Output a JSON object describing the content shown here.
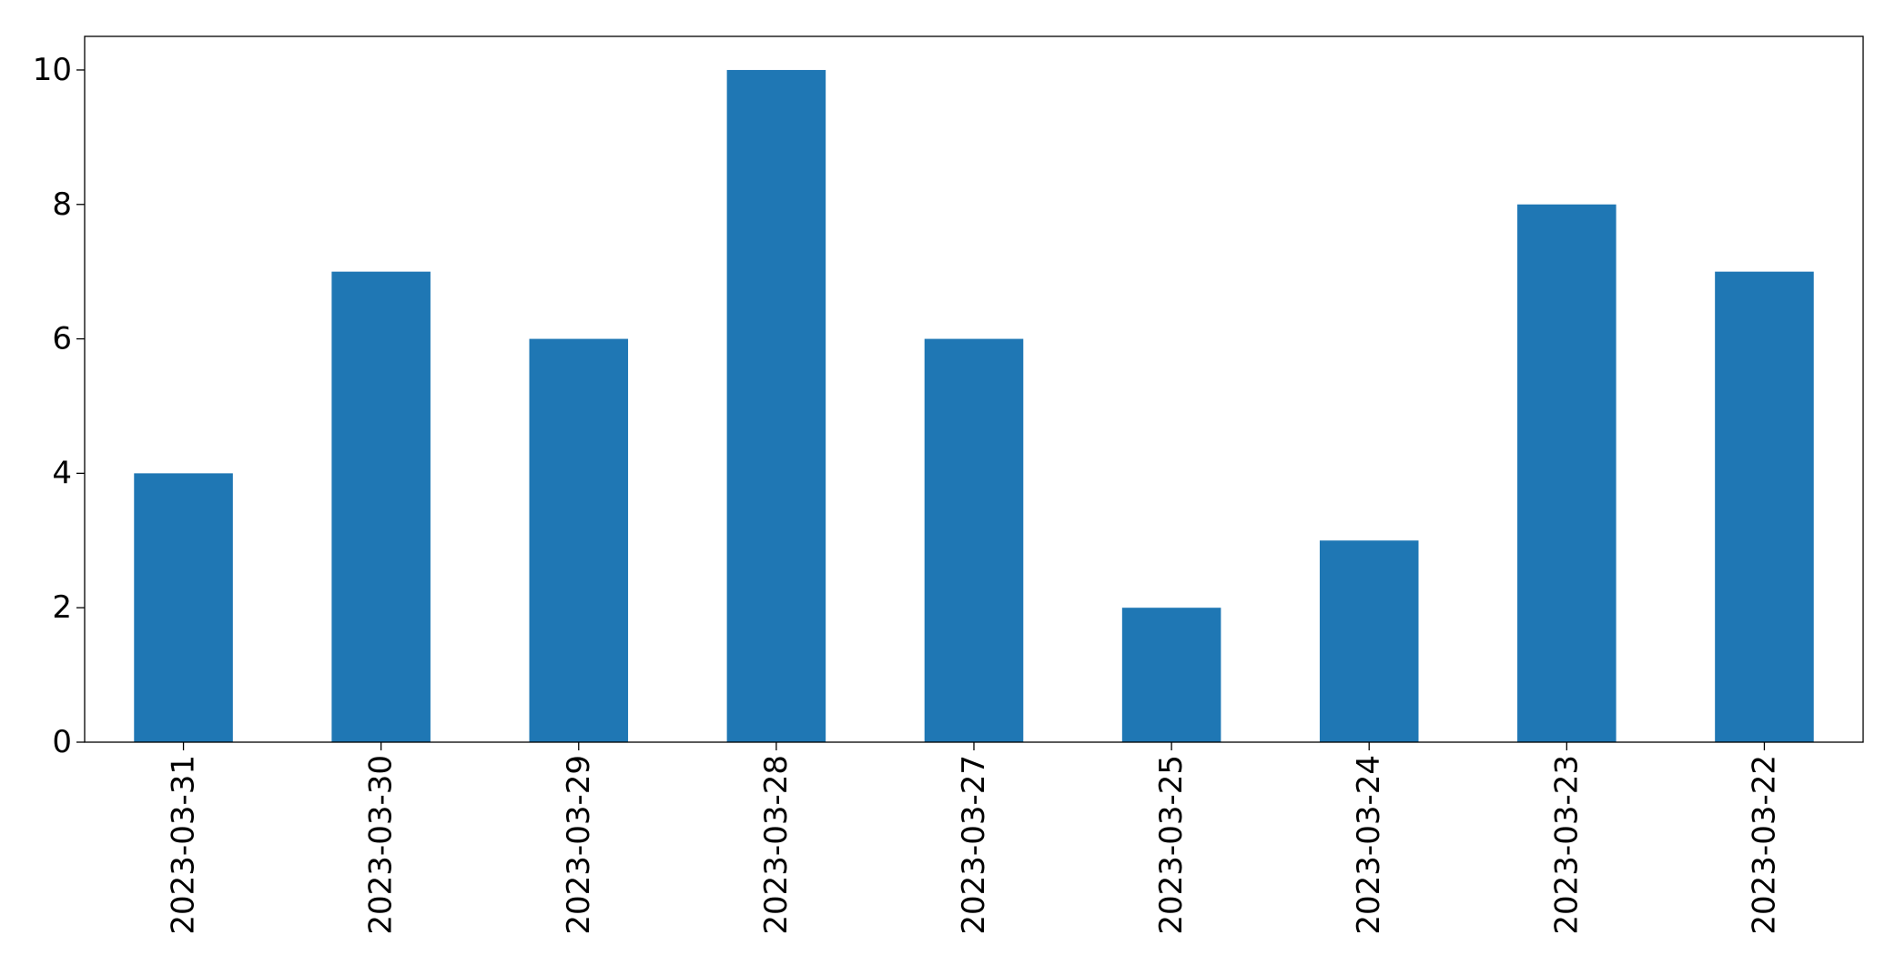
{
  "chart_data": {
    "type": "bar",
    "title": "",
    "xlabel": "",
    "ylabel": "",
    "categories": [
      "2023-03-31",
      "2023-03-30",
      "2023-03-29",
      "2023-03-28",
      "2023-03-27",
      "2023-03-25",
      "2023-03-24",
      "2023-03-23",
      "2023-03-22"
    ],
    "values": [
      4,
      7,
      6,
      10,
      6,
      2,
      3,
      8,
      7
    ],
    "ylim": [
      0,
      10.5
    ],
    "yticks": [
      0,
      2,
      4,
      6,
      8,
      10
    ],
    "grid": false,
    "legend": "none",
    "bar_color": "#1f77b4"
  }
}
